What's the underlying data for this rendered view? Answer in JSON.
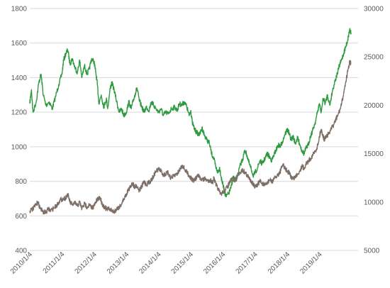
{
  "chart_data": {
    "type": "line",
    "title": "",
    "xlabel": "",
    "ylabel": "",
    "y2label": "",
    "grid": true,
    "legend": "none",
    "ylim": [
      400,
      1800
    ],
    "y2lim": [
      5000,
      30000
    ],
    "yticks": [
      "400",
      "600",
      "800",
      "1000",
      "1200",
      "1400",
      "1600",
      "1800"
    ],
    "y2ticks": [
      "5000",
      "10000",
      "15000",
      "20000",
      "25000",
      "30000"
    ],
    "xticks": [
      {
        "label": "2010/1/4",
        "t": 2010.0
      },
      {
        "label": "2011/1/4",
        "t": 2011.0
      },
      {
        "label": "2012/1/4",
        "t": 2012.0
      },
      {
        "label": "2013/1/4",
        "t": 2013.0
      },
      {
        "label": "2014/1/4",
        "t": 2014.0
      },
      {
        "label": "2015/1/4",
        "t": 2015.0
      },
      {
        "label": "2016/1/4",
        "t": 2016.0
      },
      {
        "label": "2017/1/4",
        "t": 2017.0
      },
      {
        "label": "2018/1/4",
        "t": 2018.0
      },
      {
        "label": "2019/1/4",
        "t": 2019.0
      }
    ],
    "xlim": [
      2010.0,
      2020.2
    ],
    "series": [
      {
        "axis": "left",
        "color": "#2e9a3f",
        "points": [
          [
            2010.0,
            1250
          ],
          [
            2010.05,
            1330
          ],
          [
            2010.1,
            1200
          ],
          [
            2010.2,
            1260
          ],
          [
            2010.28,
            1370
          ],
          [
            2010.35,
            1420
          ],
          [
            2010.42,
            1300
          ],
          [
            2010.5,
            1240
          ],
          [
            2010.6,
            1260
          ],
          [
            2010.7,
            1220
          ],
          [
            2010.8,
            1290
          ],
          [
            2010.9,
            1360
          ],
          [
            2011.0,
            1420
          ],
          [
            2011.05,
            1500
          ],
          [
            2011.12,
            1540
          ],
          [
            2011.18,
            1560
          ],
          [
            2011.25,
            1480
          ],
          [
            2011.32,
            1510
          ],
          [
            2011.4,
            1460
          ],
          [
            2011.48,
            1430
          ],
          [
            2011.55,
            1500
          ],
          [
            2011.62,
            1400
          ],
          [
            2011.7,
            1470
          ],
          [
            2011.78,
            1420
          ],
          [
            2011.85,
            1450
          ],
          [
            2011.92,
            1510
          ],
          [
            2012.0,
            1490
          ],
          [
            2012.05,
            1430
          ],
          [
            2012.1,
            1360
          ],
          [
            2012.15,
            1250
          ],
          [
            2012.22,
            1300
          ],
          [
            2012.3,
            1230
          ],
          [
            2012.38,
            1280
          ],
          [
            2012.42,
            1220
          ],
          [
            2012.5,
            1340
          ],
          [
            2012.55,
            1370
          ],
          [
            2012.62,
            1330
          ],
          [
            2012.7,
            1260
          ],
          [
            2012.78,
            1200
          ],
          [
            2012.85,
            1220
          ],
          [
            2012.92,
            1180
          ],
          [
            2013.0,
            1200
          ],
          [
            2013.08,
            1260
          ],
          [
            2013.15,
            1220
          ],
          [
            2013.22,
            1270
          ],
          [
            2013.28,
            1310
          ],
          [
            2013.33,
            1340
          ],
          [
            2013.4,
            1270
          ],
          [
            2013.48,
            1230
          ],
          [
            2013.55,
            1200
          ],
          [
            2013.62,
            1230
          ],
          [
            2013.7,
            1210
          ],
          [
            2013.78,
            1260
          ],
          [
            2013.85,
            1240
          ],
          [
            2013.92,
            1220
          ],
          [
            2014.0,
            1200
          ],
          [
            2014.08,
            1220
          ],
          [
            2014.15,
            1180
          ],
          [
            2014.22,
            1200
          ],
          [
            2014.3,
            1190
          ],
          [
            2014.4,
            1220
          ],
          [
            2014.5,
            1230
          ],
          [
            2014.58,
            1210
          ],
          [
            2014.65,
            1250
          ],
          [
            2014.72,
            1240
          ],
          [
            2014.8,
            1260
          ],
          [
            2014.88,
            1230
          ],
          [
            2014.95,
            1180
          ],
          [
            2015.0,
            1210
          ],
          [
            2015.05,
            1140
          ],
          [
            2015.12,
            1100
          ],
          [
            2015.2,
            1080
          ],
          [
            2015.28,
            1070
          ],
          [
            2015.35,
            1110
          ],
          [
            2015.42,
            1070
          ],
          [
            2015.5,
            1040
          ],
          [
            2015.58,
            1020
          ],
          [
            2015.65,
            960
          ],
          [
            2015.72,
            930
          ],
          [
            2015.78,
            880
          ],
          [
            2015.85,
            850
          ],
          [
            2015.9,
            880
          ],
          [
            2015.95,
            820
          ],
          [
            2016.0,
            780
          ],
          [
            2016.05,
            740
          ],
          [
            2016.1,
            710
          ],
          [
            2016.18,
            730
          ],
          [
            2016.25,
            760
          ],
          [
            2016.32,
            830
          ],
          [
            2016.4,
            800
          ],
          [
            2016.48,
            850
          ],
          [
            2016.55,
            900
          ],
          [
            2016.62,
            930
          ],
          [
            2016.68,
            980
          ],
          [
            2016.75,
            950
          ],
          [
            2016.82,
            900
          ],
          [
            2016.88,
            870
          ],
          [
            2016.95,
            830
          ],
          [
            2017.0,
            850
          ],
          [
            2017.08,
            880
          ],
          [
            2017.15,
            920
          ],
          [
            2017.22,
            900
          ],
          [
            2017.3,
            930
          ],
          [
            2017.38,
            960
          ],
          [
            2017.45,
            940
          ],
          [
            2017.52,
            920
          ],
          [
            2017.58,
            950
          ],
          [
            2017.65,
            980
          ],
          [
            2017.72,
            1010
          ],
          [
            2017.78,
            1000
          ],
          [
            2017.85,
            1030
          ],
          [
            2017.92,
            1070
          ],
          [
            2018.0,
            1100
          ],
          [
            2018.05,
            1080
          ],
          [
            2018.12,
            1040
          ],
          [
            2018.18,
            1060
          ],
          [
            2018.25,
            1020
          ],
          [
            2018.32,
            1050
          ],
          [
            2018.38,
            1020
          ],
          [
            2018.45,
            980
          ],
          [
            2018.52,
            960
          ],
          [
            2018.58,
            990
          ],
          [
            2018.65,
            1010
          ],
          [
            2018.72,
            1060
          ],
          [
            2018.8,
            1100
          ],
          [
            2018.88,
            1150
          ],
          [
            2018.95,
            1210
          ],
          [
            2019.0,
            1250
          ],
          [
            2019.05,
            1200
          ],
          [
            2019.12,
            1280
          ],
          [
            2019.18,
            1250
          ],
          [
            2019.25,
            1300
          ],
          [
            2019.32,
            1240
          ],
          [
            2019.4,
            1320
          ],
          [
            2019.48,
            1380
          ],
          [
            2019.55,
            1420
          ],
          [
            2019.62,
            1470
          ],
          [
            2019.68,
            1500
          ],
          [
            2019.75,
            1540
          ],
          [
            2019.82,
            1580
          ],
          [
            2019.88,
            1620
          ],
          [
            2019.94,
            1680
          ],
          [
            2019.98,
            1660
          ]
        ]
      },
      {
        "axis": "right",
        "color": "#7d6e66",
        "points": [
          [
            2010.0,
            9100
          ],
          [
            2010.1,
            9300
          ],
          [
            2010.2,
            9700
          ],
          [
            2010.25,
            10000
          ],
          [
            2010.32,
            9400
          ],
          [
            2010.4,
            9000
          ],
          [
            2010.5,
            8900
          ],
          [
            2010.58,
            9300
          ],
          [
            2010.65,
            9100
          ],
          [
            2010.75,
            9400
          ],
          [
            2010.85,
            9700
          ],
          [
            2010.92,
            10100
          ],
          [
            2011.0,
            10300
          ],
          [
            2011.1,
            10400
          ],
          [
            2011.18,
            10800
          ],
          [
            2011.25,
            10000
          ],
          [
            2011.32,
            9700
          ],
          [
            2011.4,
            9900
          ],
          [
            2011.48,
            9600
          ],
          [
            2011.55,
            10000
          ],
          [
            2011.62,
            9300
          ],
          [
            2011.7,
            9800
          ],
          [
            2011.78,
            9500
          ],
          [
            2011.85,
            9700
          ],
          [
            2011.92,
            9400
          ],
          [
            2012.0,
            9600
          ],
          [
            2012.05,
            10000
          ],
          [
            2012.12,
            10300
          ],
          [
            2012.18,
            10500
          ],
          [
            2012.25,
            9800
          ],
          [
            2012.32,
            9500
          ],
          [
            2012.4,
            9200
          ],
          [
            2012.48,
            9300
          ],
          [
            2012.55,
            9100
          ],
          [
            2012.62,
            9000
          ],
          [
            2012.7,
            9300
          ],
          [
            2012.78,
            9500
          ],
          [
            2012.85,
            9800
          ],
          [
            2012.92,
            10300
          ],
          [
            2013.0,
            10800
          ],
          [
            2013.05,
            11200
          ],
          [
            2013.12,
            11500
          ],
          [
            2013.18,
            12000
          ],
          [
            2013.25,
            11600
          ],
          [
            2013.32,
            11700
          ],
          [
            2013.4,
            11200
          ],
          [
            2013.48,
            11600
          ],
          [
            2013.55,
            12100
          ],
          [
            2013.62,
            11800
          ],
          [
            2013.7,
            12000
          ],
          [
            2013.78,
            12300
          ],
          [
            2013.85,
            12700
          ],
          [
            2013.92,
            13200
          ],
          [
            2014.0,
            13400
          ],
          [
            2014.08,
            13200
          ],
          [
            2014.15,
            12800
          ],
          [
            2014.22,
            12900
          ],
          [
            2014.3,
            13000
          ],
          [
            2014.38,
            12500
          ],
          [
            2014.45,
            12600
          ],
          [
            2014.52,
            12800
          ],
          [
            2014.6,
            13000
          ],
          [
            2014.68,
            13500
          ],
          [
            2014.75,
            13800
          ],
          [
            2014.82,
            13300
          ],
          [
            2014.9,
            13000
          ],
          [
            2014.95,
            12700
          ],
          [
            2015.0,
            12500
          ],
          [
            2015.08,
            12200
          ],
          [
            2015.15,
            12400
          ],
          [
            2015.22,
            12700
          ],
          [
            2015.3,
            12500
          ],
          [
            2015.38,
            12300
          ],
          [
            2015.45,
            12400
          ],
          [
            2015.52,
            12200
          ],
          [
            2015.6,
            12300
          ],
          [
            2015.68,
            12000
          ],
          [
            2015.72,
            12500
          ],
          [
            2015.78,
            11800
          ],
          [
            2015.85,
            11400
          ],
          [
            2015.92,
            10800
          ],
          [
            2016.0,
            11000
          ],
          [
            2016.08,
            11300
          ],
          [
            2016.15,
            11600
          ],
          [
            2016.22,
            12100
          ],
          [
            2016.3,
            12400
          ],
          [
            2016.38,
            12200
          ],
          [
            2016.45,
            12700
          ],
          [
            2016.52,
            13000
          ],
          [
            2016.6,
            13300
          ],
          [
            2016.68,
            13100
          ],
          [
            2016.75,
            12800
          ],
          [
            2016.8,
            12500
          ],
          [
            2016.88,
            12200
          ],
          [
            2016.95,
            11800
          ],
          [
            2017.0,
            11500
          ],
          [
            2017.08,
            11800
          ],
          [
            2017.15,
            12200
          ],
          [
            2017.22,
            11900
          ],
          [
            2017.3,
            11700
          ],
          [
            2017.38,
            12000
          ],
          [
            2017.45,
            12300
          ],
          [
            2017.52,
            12100
          ],
          [
            2017.6,
            12400
          ],
          [
            2017.68,
            12700
          ],
          [
            2017.75,
            13000
          ],
          [
            2017.8,
            13300
          ],
          [
            2017.86,
            13900
          ],
          [
            2017.92,
            13500
          ],
          [
            2018.0,
            13200
          ],
          [
            2018.06,
            13000
          ],
          [
            2018.12,
            12600
          ],
          [
            2018.18,
            12400
          ],
          [
            2018.25,
            12600
          ],
          [
            2018.32,
            12900
          ],
          [
            2018.4,
            13300
          ],
          [
            2018.45,
            13700
          ],
          [
            2018.52,
            13500
          ],
          [
            2018.58,
            13900
          ],
          [
            2018.65,
            14200
          ],
          [
            2018.72,
            14500
          ],
          [
            2018.8,
            14900
          ],
          [
            2018.88,
            15300
          ],
          [
            2018.95,
            15900
          ],
          [
            2019.0,
            16800
          ],
          [
            2019.05,
            17500
          ],
          [
            2019.1,
            17000
          ],
          [
            2019.15,
            16400
          ],
          [
            2019.2,
            16800
          ],
          [
            2019.28,
            17000
          ],
          [
            2019.36,
            17500
          ],
          [
            2019.44,
            18000
          ],
          [
            2019.52,
            18600
          ],
          [
            2019.6,
            19200
          ],
          [
            2019.68,
            20000
          ],
          [
            2019.75,
            21200
          ],
          [
            2019.82,
            22500
          ],
          [
            2019.88,
            23500
          ],
          [
            2019.94,
            24500
          ],
          [
            2019.98,
            24300
          ]
        ]
      }
    ]
  }
}
